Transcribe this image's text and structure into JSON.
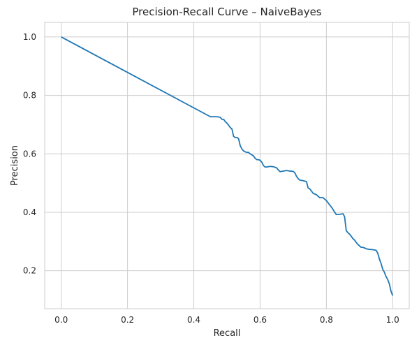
{
  "chart_data": {
    "type": "line",
    "title": "Precision-Recall Curve – NaiveBayes",
    "xlabel": "Recall",
    "ylabel": "Precision",
    "xlim": [
      -0.05,
      1.05
    ],
    "ylim": [
      0.07,
      1.05
    ],
    "grid": true,
    "xticks": [
      0.0,
      0.2,
      0.4,
      0.6,
      0.8,
      1.0
    ],
    "yticks": [
      0.2,
      0.4,
      0.6,
      0.8,
      1.0
    ],
    "xtick_labels": [
      "0.0",
      "0.2",
      "0.4",
      "0.6",
      "0.8",
      "1.0"
    ],
    "ytick_labels": [
      "0.2",
      "0.4",
      "0.6",
      "0.8",
      "1.0"
    ],
    "series": [
      {
        "color": "#1f77b4",
        "x": [
          0.0,
          0.45,
          0.455,
          0.47,
          0.48,
          0.485,
          0.49,
          0.495,
          0.5,
          0.505,
          0.51,
          0.515,
          0.52,
          0.525,
          0.53,
          0.535,
          0.54,
          0.545,
          0.55,
          0.555,
          0.56,
          0.565,
          0.57,
          0.58,
          0.585,
          0.59,
          0.595,
          0.6,
          0.605,
          0.61,
          0.615,
          0.62,
          0.63,
          0.64,
          0.65,
          0.655,
          0.66,
          0.67,
          0.68,
          0.69,
          0.7,
          0.705,
          0.71,
          0.715,
          0.72,
          0.73,
          0.74,
          0.745,
          0.75,
          0.76,
          0.77,
          0.775,
          0.78,
          0.785,
          0.79,
          0.8,
          0.81,
          0.815,
          0.82,
          0.825,
          0.83,
          0.84,
          0.85,
          0.855,
          0.86,
          0.865,
          0.87,
          0.875,
          0.88,
          0.885,
          0.89,
          0.895,
          0.9,
          0.905,
          0.91,
          0.915,
          0.92,
          0.93,
          0.94,
          0.95,
          0.955,
          0.96,
          0.965,
          0.97,
          0.975,
          0.98,
          0.985,
          0.99,
          0.995,
          1.0
        ],
        "y": [
          1.0,
          0.727,
          0.727,
          0.727,
          0.725,
          0.718,
          0.718,
          0.71,
          0.705,
          0.698,
          0.69,
          0.685,
          0.66,
          0.656,
          0.656,
          0.652,
          0.628,
          0.617,
          0.61,
          0.607,
          0.605,
          0.605,
          0.6,
          0.593,
          0.585,
          0.58,
          0.58,
          0.578,
          0.572,
          0.56,
          0.555,
          0.555,
          0.557,
          0.556,
          0.552,
          0.545,
          0.539,
          0.541,
          0.543,
          0.541,
          0.54,
          0.535,
          0.523,
          0.515,
          0.51,
          0.508,
          0.505,
          0.483,
          0.48,
          0.465,
          0.46,
          0.455,
          0.45,
          0.45,
          0.45,
          0.44,
          0.425,
          0.418,
          0.41,
          0.4,
          0.392,
          0.393,
          0.395,
          0.385,
          0.337,
          0.33,
          0.325,
          0.318,
          0.31,
          0.305,
          0.297,
          0.29,
          0.285,
          0.28,
          0.28,
          0.278,
          0.275,
          0.273,
          0.272,
          0.27,
          0.26,
          0.24,
          0.225,
          0.205,
          0.195,
          0.18,
          0.17,
          0.155,
          0.13,
          0.115
        ]
      }
    ]
  }
}
